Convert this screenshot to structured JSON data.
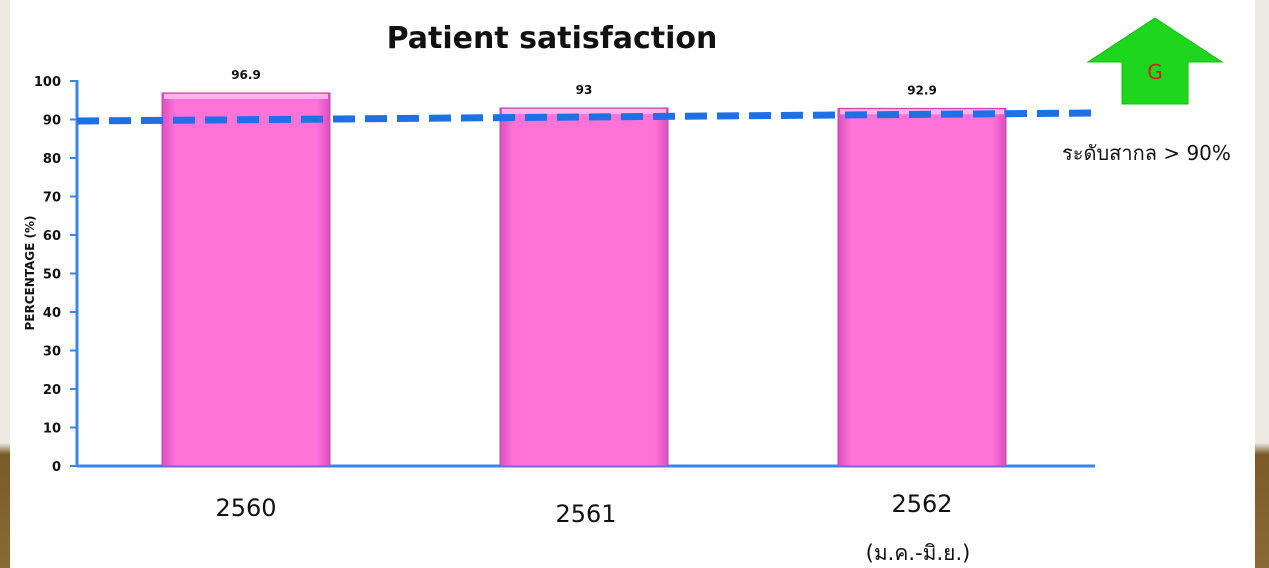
{
  "chart_data": {
    "type": "bar",
    "title": "Patient satisfaction",
    "ylabel": "PERCENTAGE (%)",
    "xlabel": "",
    "ylim": [
      0,
      100
    ],
    "yticks": [
      "0",
      "10",
      "20",
      "30",
      "40",
      "50",
      "60",
      "70",
      "80",
      "90",
      "100"
    ],
    "categories": [
      "2560",
      "2561",
      "2562"
    ],
    "category_sublabels": [
      "",
      "",
      "(ม.ค.-มิ.ย.)"
    ],
    "values": [
      96.9,
      93,
      92.9
    ],
    "data_labels": [
      "96.9",
      "93",
      "92.9"
    ],
    "bar_color": "#ff73d9",
    "reference_line": {
      "value": 90,
      "label": "ระดับสากล > 90%",
      "color": "#1f6fe5",
      "style": "dashed"
    },
    "badge": {
      "label": "G",
      "shape": "up-arrow",
      "color": "#1fd61f",
      "text_color": "#d42020"
    },
    "grid": false,
    "legend": "none"
  }
}
